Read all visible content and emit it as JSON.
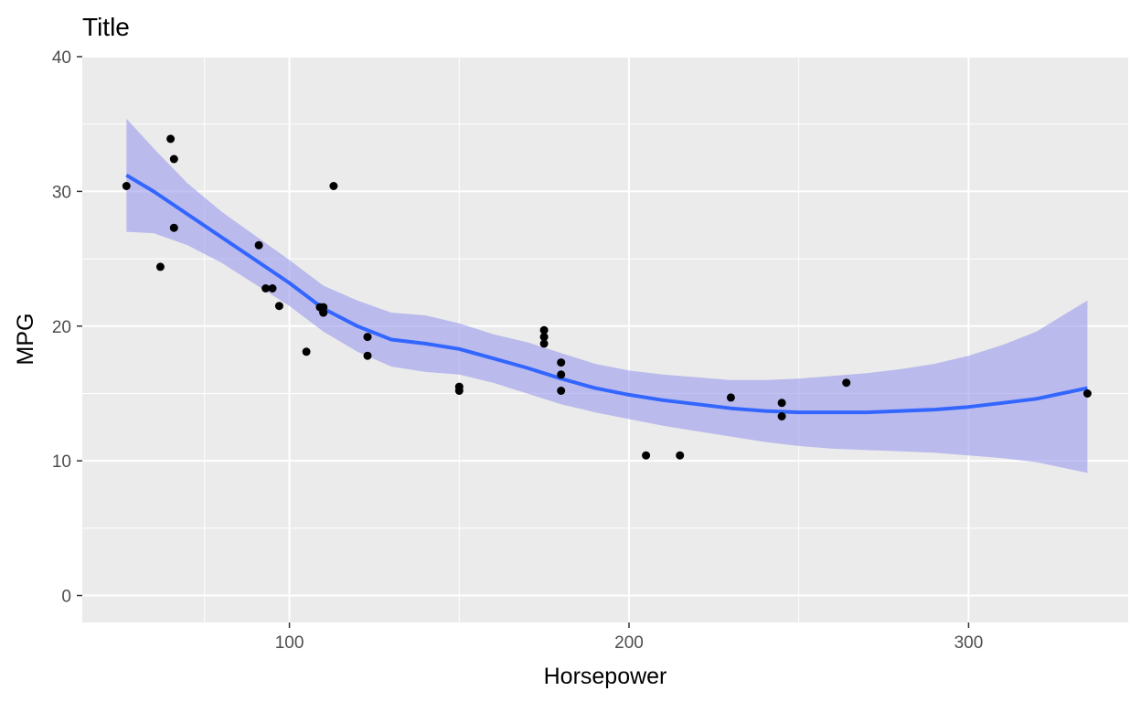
{
  "chart_data": {
    "type": "scatter",
    "title": "Title",
    "xlabel": "Horsepower",
    "ylabel": "MPG",
    "xlim": [
      39,
      347
    ],
    "ylim": [
      -2,
      40
    ],
    "x_ticks": [
      100,
      200,
      300
    ],
    "x_minor_ticks": [
      75,
      150,
      250
    ],
    "y_ticks": [
      0,
      10,
      20,
      30,
      40
    ],
    "y_minor_ticks": [
      5,
      15,
      25,
      35
    ],
    "grid": true,
    "legend": "none",
    "colors": {
      "panel": "#ebebeb",
      "grid": "#ffffff",
      "points": "#000000",
      "smooth_line": "#3366ff",
      "ribbon": "#9999ee",
      "tick_text": "#4d4d4d",
      "tick_mark": "#333333"
    },
    "series": [
      {
        "type": "scatter",
        "points": [
          [
            52,
            30.4
          ],
          [
            62,
            24.4
          ],
          [
            65,
            33.9
          ],
          [
            66,
            32.4
          ],
          [
            66,
            27.3
          ],
          [
            91,
            26.0
          ],
          [
            93,
            22.8
          ],
          [
            95,
            22.8
          ],
          [
            97,
            21.5
          ],
          [
            105,
            18.1
          ],
          [
            109,
            21.4
          ],
          [
            110,
            21.0
          ],
          [
            110,
            21.0
          ],
          [
            110,
            21.4
          ],
          [
            113,
            30.4
          ],
          [
            123,
            17.8
          ],
          [
            123,
            19.2
          ],
          [
            150,
            15.2
          ],
          [
            150,
            15.5
          ],
          [
            175,
            18.7
          ],
          [
            175,
            19.2
          ],
          [
            175,
            19.7
          ],
          [
            180,
            16.4
          ],
          [
            180,
            17.3
          ],
          [
            180,
            15.2
          ],
          [
            205,
            10.4
          ],
          [
            215,
            10.4
          ],
          [
            230,
            14.7
          ],
          [
            245,
            13.3
          ],
          [
            245,
            14.3
          ],
          [
            264,
            15.8
          ],
          [
            335,
            15.0
          ]
        ]
      },
      {
        "type": "smooth",
        "x": [
          52,
          60,
          70,
          80,
          90,
          100,
          110,
          120,
          130,
          140,
          150,
          160,
          170,
          180,
          190,
          200,
          210,
          220,
          230,
          240,
          250,
          260,
          270,
          280,
          290,
          300,
          310,
          320,
          335
        ],
        "y": [
          31.2,
          30.0,
          28.3,
          26.6,
          24.9,
          23.2,
          21.3,
          20.0,
          19.0,
          18.7,
          18.3,
          17.6,
          16.9,
          16.1,
          15.4,
          14.9,
          14.5,
          14.2,
          13.9,
          13.7,
          13.6,
          13.6,
          13.6,
          13.7,
          13.8,
          14.0,
          14.3,
          14.6,
          15.4
        ],
        "ymin": [
          27.0,
          26.9,
          26.0,
          24.7,
          23.1,
          21.5,
          19.6,
          18.1,
          17.0,
          16.6,
          16.4,
          15.8,
          15.0,
          14.2,
          13.6,
          13.1,
          12.6,
          12.2,
          11.8,
          11.4,
          11.1,
          10.9,
          10.8,
          10.7,
          10.6,
          10.4,
          10.2,
          9.9,
          9.1
        ],
        "ymax": [
          35.4,
          33.2,
          30.6,
          28.5,
          26.7,
          24.9,
          23.0,
          21.9,
          21.0,
          20.8,
          20.2,
          19.4,
          18.8,
          18.0,
          17.2,
          16.7,
          16.4,
          16.2,
          16.0,
          16.0,
          16.1,
          16.3,
          16.5,
          16.8,
          17.2,
          17.8,
          18.6,
          19.6,
          21.9
        ]
      }
    ]
  }
}
